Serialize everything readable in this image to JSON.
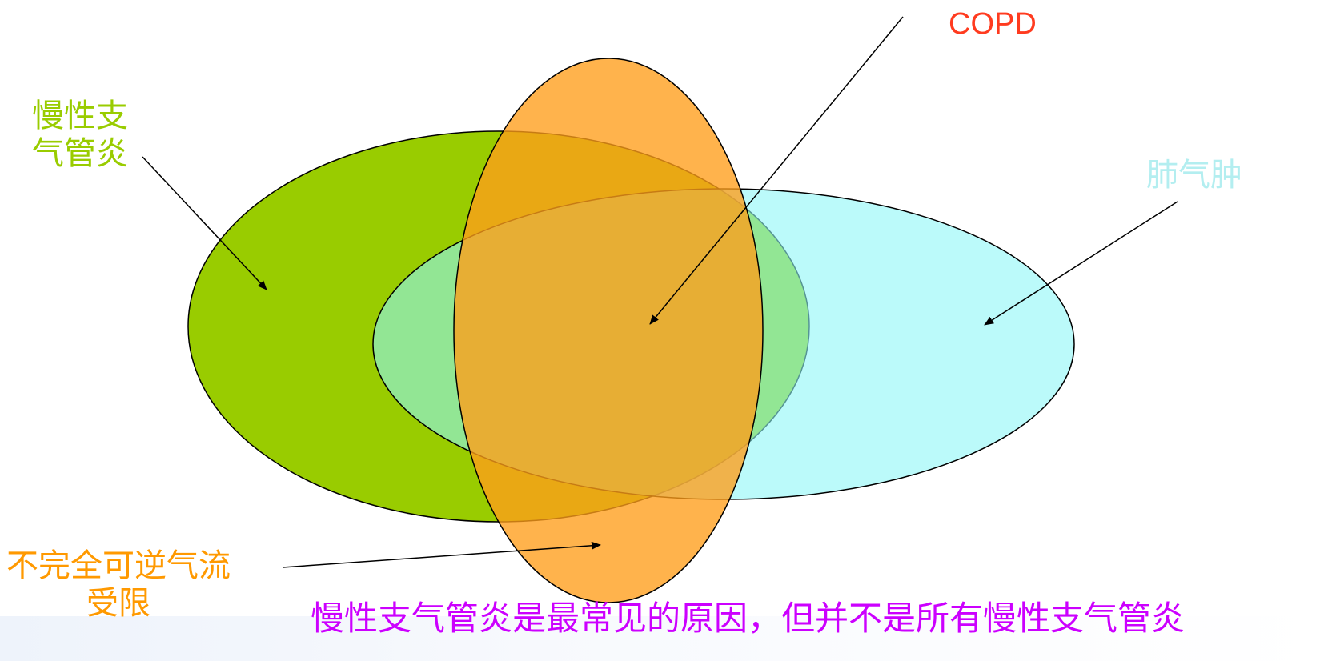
{
  "labels": {
    "copd": "COPD",
    "chronic_bronchitis_line1": "慢性支",
    "chronic_bronchitis_line2": "气管炎",
    "emphysema": "肺气肿",
    "airflow_line1": "不完全可逆气流",
    "airflow_line2": "受限",
    "note": "慢性支气管炎是最常见的原因，但并不是所有慢性支气管炎"
  },
  "colors": {
    "chronic_bronchitis": "#99cc00",
    "emphysema": "#b3ffff",
    "airflow_limitation": "#ffa31a",
    "copd_label": "#ff3b1f",
    "note_text": "#cc00ff"
  }
}
